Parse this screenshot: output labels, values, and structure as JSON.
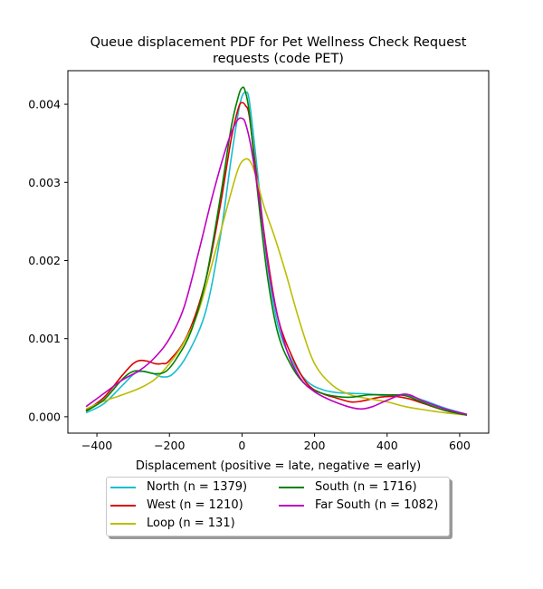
{
  "chart_data": {
    "type": "line",
    "title_lines": [
      "Queue displacement PDF for Pet Wellness Check Request",
      "requests (code PET)"
    ],
    "xlabel": "Displacement (positive = late, negative = early)",
    "ylabel": "",
    "xlim": [
      -480,
      680
    ],
    "ylim": [
      -0.00021,
      0.00443
    ],
    "xticks": [
      -400,
      -200,
      0,
      200,
      400,
      600
    ],
    "yticks": [
      0.0,
      0.001,
      0.002,
      0.003,
      0.004
    ],
    "xtick_labels": [
      "−400",
      "−200",
      "0",
      "200",
      "400",
      "600"
    ],
    "ytick_labels": [
      "0.000",
      "0.001",
      "0.002",
      "0.003",
      "0.004"
    ],
    "grid": false,
    "legend_position": "below",
    "series": [
      {
        "name": "North (n = 1379)",
        "color": "#17becf",
        "x": [
          -430,
          -380,
          -330,
          -290,
          -250,
          -220,
          -190,
          -150,
          -100,
          -60,
          -30,
          -10,
          0,
          10,
          20,
          40,
          70,
          100,
          140,
          180,
          220,
          260,
          300,
          350,
          400,
          450,
          500,
          560,
          620
        ],
        "y": [
          5e-05,
          0.00017,
          0.0004,
          0.00057,
          0.00056,
          0.00051,
          0.00055,
          0.0008,
          0.00135,
          0.0023,
          0.0033,
          0.0039,
          0.0041,
          0.00415,
          0.00405,
          0.00325,
          0.00195,
          0.00115,
          0.0007,
          0.00045,
          0.00035,
          0.00031,
          0.0003,
          0.00029,
          0.00027,
          0.00028,
          0.00021,
          0.00011,
          3e-05
        ]
      },
      {
        "name": "West (n = 1210)",
        "color": "#dd0000",
        "x": [
          -430,
          -380,
          -330,
          -300,
          -280,
          -260,
          -240,
          -220,
          -200,
          -150,
          -100,
          -60,
          -30,
          -10,
          0,
          10,
          20,
          40,
          70,
          100,
          140,
          180,
          220,
          260,
          300,
          330,
          380,
          420,
          460,
          500,
          560,
          620
        ],
        "y": [
          8e-05,
          0.00025,
          0.00053,
          0.00068,
          0.00072,
          0.00071,
          0.00068,
          0.00068,
          0.00072,
          0.00105,
          0.00175,
          0.0027,
          0.00355,
          0.00395,
          0.00402,
          0.00398,
          0.00385,
          0.0031,
          0.00205,
          0.00125,
          0.00075,
          0.00042,
          0.0003,
          0.00024,
          0.00019,
          0.0002,
          0.00025,
          0.00026,
          0.00023,
          0.00017,
          8e-05,
          2e-05
        ]
      },
      {
        "name": "Loop (n = 131)",
        "color": "#bcbd00",
        "x": [
          -430,
          -380,
          -330,
          -280,
          -240,
          -200,
          -160,
          -120,
          -80,
          -40,
          -10,
          10,
          25,
          40,
          60,
          90,
          120,
          160,
          200,
          250,
          300,
          350,
          400,
          450,
          500,
          560,
          620
        ],
        "y": [
          0.0001,
          0.0002,
          0.00028,
          0.00037,
          0.00048,
          0.00068,
          0.00095,
          0.00135,
          0.002,
          0.0027,
          0.00318,
          0.0033,
          0.00325,
          0.00305,
          0.0027,
          0.0023,
          0.00185,
          0.0012,
          0.00068,
          0.0004,
          0.00028,
          0.00023,
          0.00019,
          0.00013,
          9e-05,
          5e-05,
          2e-05
        ]
      },
      {
        "name": "South (n = 1716)",
        "color": "#008000",
        "x": [
          -430,
          -380,
          -330,
          -300,
          -270,
          -240,
          -210,
          -180,
          -140,
          -100,
          -60,
          -30,
          -10,
          0,
          8,
          20,
          40,
          70,
          100,
          140,
          180,
          220,
          260,
          300,
          350,
          400,
          450,
          500,
          560,
          620
        ],
        "y": [
          7e-05,
          0.00022,
          0.00048,
          0.00058,
          0.00058,
          0.00055,
          0.00058,
          0.00075,
          0.0011,
          0.00175,
          0.0028,
          0.0037,
          0.0041,
          0.00421,
          0.00418,
          0.0039,
          0.003,
          0.0018,
          0.00105,
          0.00062,
          0.00039,
          0.0003,
          0.00026,
          0.00025,
          0.00028,
          0.00028,
          0.00027,
          0.00018,
          8e-05,
          2e-05
        ]
      },
      {
        "name": "Far South (n = 1082)",
        "color": "#bf00bf",
        "x": [
          -430,
          -380,
          -330,
          -280,
          -240,
          -200,
          -160,
          -120,
          -80,
          -40,
          -15,
          0,
          10,
          25,
          50,
          80,
          120,
          160,
          200,
          250,
          300,
          330,
          360,
          400,
          450,
          500,
          560,
          620
        ],
        "y": [
          0.00013,
          0.0003,
          0.00047,
          0.0006,
          0.00076,
          0.001,
          0.0014,
          0.0021,
          0.00285,
          0.0035,
          0.00378,
          0.00382,
          0.00375,
          0.00345,
          0.0027,
          0.0017,
          0.0009,
          0.0005,
          0.00032,
          0.0002,
          0.00012,
          0.0001,
          0.00013,
          0.00021,
          0.00029,
          0.0002,
          0.0001,
          3e-05
        ]
      }
    ]
  }
}
